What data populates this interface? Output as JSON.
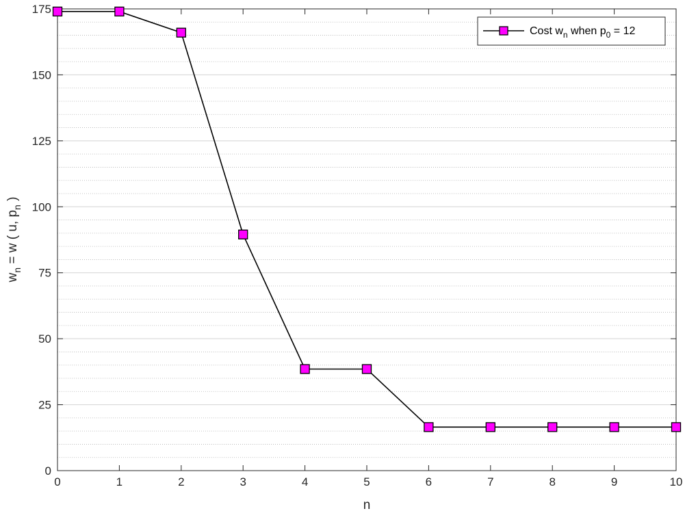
{
  "chart_data": {
    "type": "line",
    "xlabel": "n",
    "ylabel": {
      "main": "w",
      "sub_n": "n",
      "mid": " = w ( u, p",
      "close": " )"
    },
    "xlim": [
      0,
      10
    ],
    "ylim": [
      0,
      175
    ],
    "xticks": [
      0,
      1,
      2,
      3,
      4,
      5,
      6,
      7,
      8,
      9,
      10
    ],
    "yticks": [
      0,
      25,
      50,
      75,
      100,
      125,
      150,
      175
    ],
    "grid": "on (major solid, minor dotted)",
    "legend_position": "top-right",
    "series": [
      {
        "name": "Cost w_n when p_0 = 12",
        "x": [
          0,
          1,
          2,
          3,
          4,
          5,
          6,
          7,
          8,
          9,
          10
        ],
        "values": [
          174,
          174,
          166,
          89.5,
          38.5,
          38.5,
          16.5,
          16.5,
          16.5,
          16.5,
          16.5
        ],
        "color": "#000000",
        "marker": "square",
        "marker_face": "#ff00ff"
      }
    ],
    "legend": {
      "pre": "Cost w",
      "sub_n": "n",
      "mid": " when p",
      "sub_0": "0",
      "post": " = 12"
    }
  }
}
